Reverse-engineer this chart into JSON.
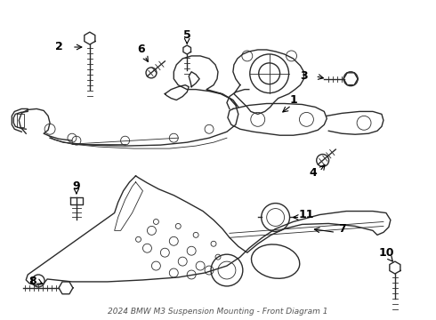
{
  "title": "2024 BMW M3 Suspension Mounting - Front Diagram 1",
  "bg_color": "#ffffff",
  "line_color": "#2a2a2a",
  "label_color": "#000000",
  "figsize": [
    4.9,
    3.6
  ],
  "dpi": 100
}
